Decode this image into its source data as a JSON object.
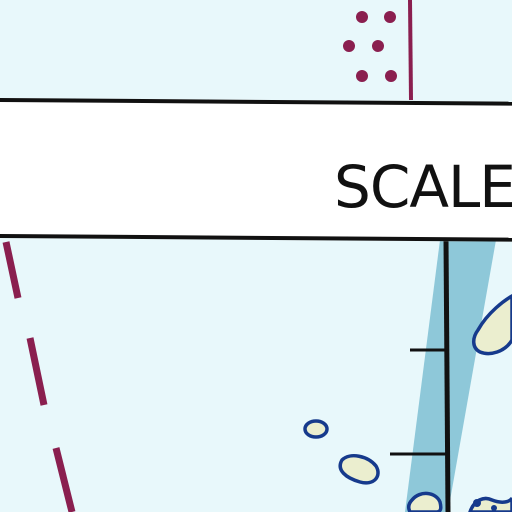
{
  "map": {
    "scale_label": "SCALE",
    "colors": {
      "water": "#e8f8fb",
      "channel": "#8ec8d9",
      "boundary": "#8a1f4f",
      "land_fill": "#ebeecf",
      "coastline": "#163a8c",
      "ink": "#111111",
      "banner": "#ffffff"
    },
    "symbols": [
      "restricted-area-dot-pattern",
      "dashed-boundary-line",
      "navigation-channel",
      "scale-ticks"
    ]
  }
}
